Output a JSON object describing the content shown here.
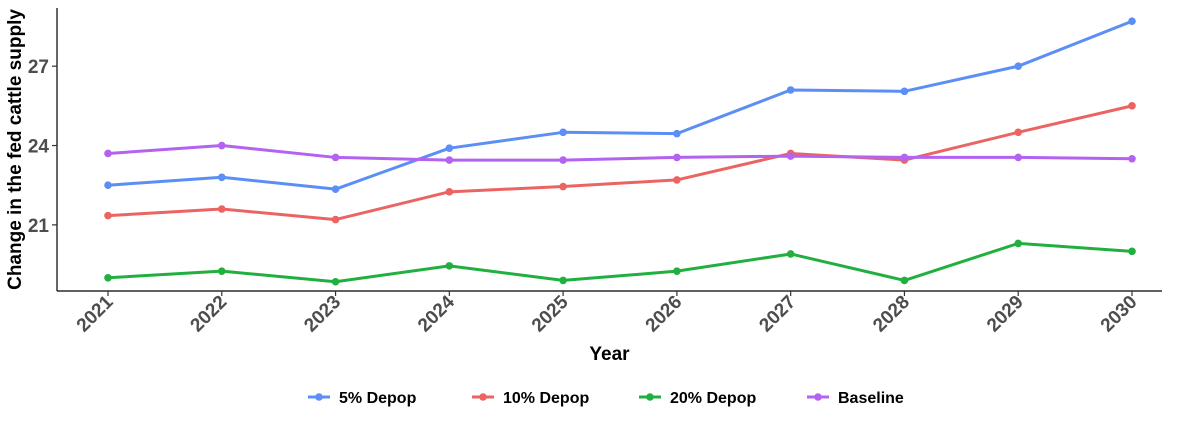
{
  "chart_data": {
    "type": "line",
    "title": "",
    "xlabel": "Year",
    "ylabel": "Change in the fed cattle supply",
    "x": [
      "2021",
      "2022",
      "2023",
      "2024",
      "2025",
      "2026",
      "2027",
      "2028",
      "2029",
      "2030"
    ],
    "yticks": [
      21,
      24,
      27
    ],
    "ylim": [
      18.5,
      29.2
    ],
    "grid": false,
    "legend_position": "bottom",
    "series": [
      {
        "name": "5% Depop",
        "color": "#5b8ff5",
        "values": [
          22.5,
          22.8,
          22.35,
          23.9,
          24.5,
          24.45,
          26.1,
          26.05,
          27.0,
          28.7
        ]
      },
      {
        "name": "10% Depop",
        "color": "#eb6462",
        "values": [
          21.35,
          21.6,
          21.2,
          22.25,
          22.45,
          22.7,
          23.7,
          23.45,
          24.5,
          25.5
        ]
      },
      {
        "name": "20% Depop",
        "color": "#21b03f",
        "values": [
          19.0,
          19.25,
          18.85,
          19.45,
          18.9,
          19.25,
          19.9,
          18.9,
          20.3,
          20.0
        ]
      },
      {
        "name": "Baseline",
        "color": "#b462f0",
        "values": [
          23.7,
          24.0,
          23.55,
          23.45,
          23.45,
          23.55,
          23.6,
          23.55,
          23.55,
          23.5
        ]
      }
    ]
  }
}
